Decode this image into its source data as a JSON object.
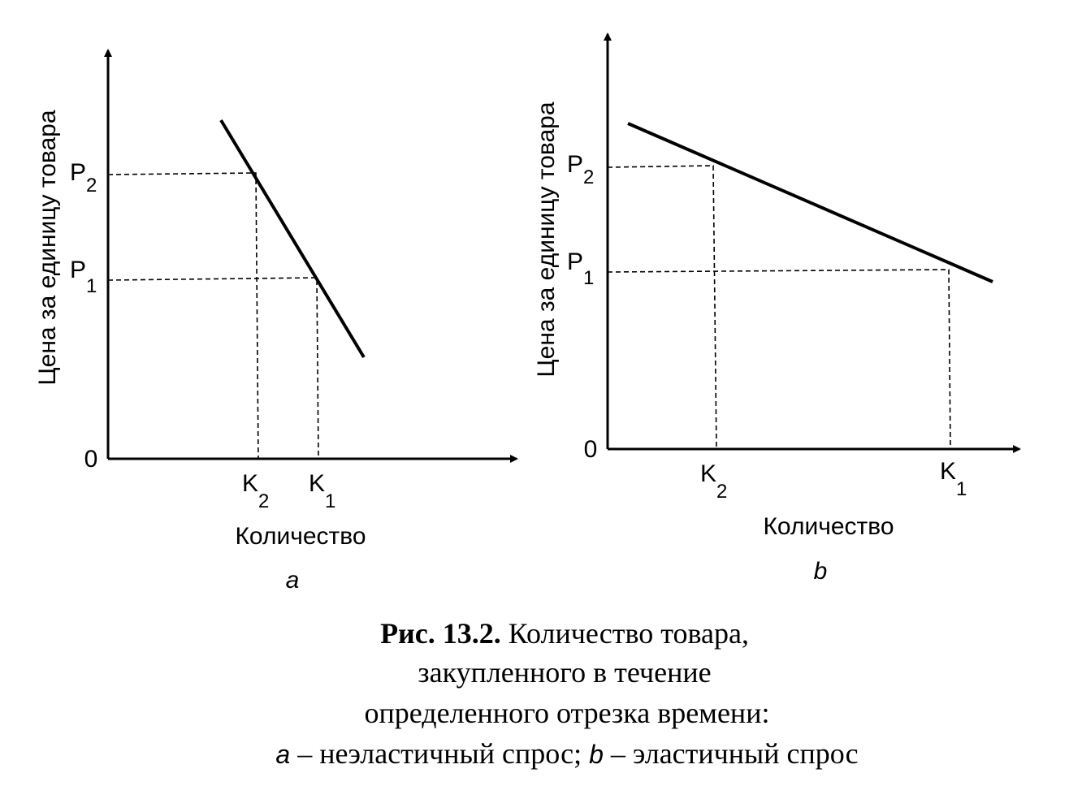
{
  "panels": [
    {
      "y_label": "Цена за единицу товара",
      "x_label": "Количество",
      "origin": "0",
      "p2": {
        "main": "P",
        "sub": "2"
      },
      "p1": {
        "main": "P",
        "sub": "1"
      },
      "k2": {
        "main": "K",
        "sub": "2"
      },
      "k1": {
        "main": "K",
        "sub": "1"
      },
      "letter": "a"
    },
    {
      "y_label": "Цена за единицу товара",
      "x_label": "Количество",
      "origin": "0",
      "p2": {
        "main": "P",
        "sub": "2"
      },
      "p1": {
        "main": "P",
        "sub": "1"
      },
      "k2": {
        "main": "K",
        "sub": "2"
      },
      "k1": {
        "main": "K",
        "sub": "1"
      },
      "letter": "b"
    }
  ],
  "caption": {
    "number": "Рис. 13.2.",
    "line1": "Количество товара,",
    "line2": "закупленного в течение",
    "line3": "определенного отрезка времени:",
    "a": "a",
    "a_text": "– неэластичный спрос;",
    "b": "b",
    "b_text": "– эластичный спрос"
  }
}
